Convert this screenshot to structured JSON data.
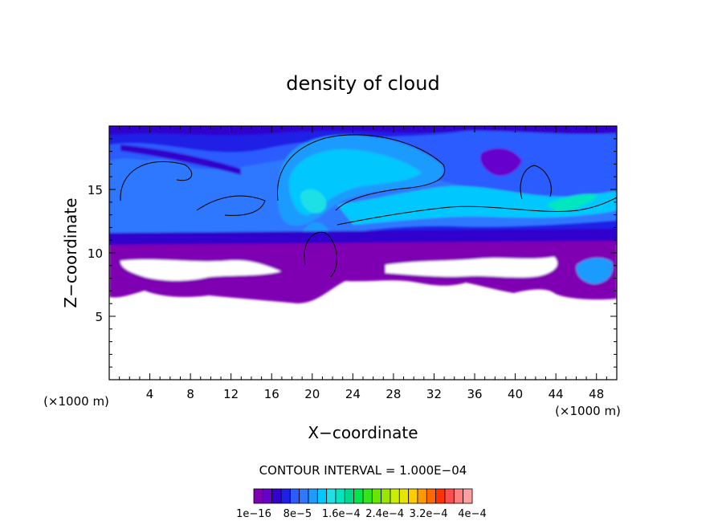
{
  "chart_data": {
    "type": "heatmap",
    "title": "density of cloud",
    "xlabel": "X−coordinate",
    "ylabel": "Z−coordinate",
    "x_unit_label": "(×1000 m)",
    "y_unit_label": "(×1000 m)",
    "xlim": [
      0,
      50
    ],
    "ylim": [
      0,
      20
    ],
    "x_ticks": [
      "4",
      "8",
      "12",
      "16",
      "20",
      "24",
      "28",
      "32",
      "36",
      "40",
      "44",
      "48"
    ],
    "y_ticks": [
      "5",
      "10",
      "15"
    ],
    "x_tick_values": [
      4,
      8,
      12,
      16,
      20,
      24,
      28,
      32,
      36,
      40,
      44,
      48
    ],
    "y_tick_values": [
      5,
      10,
      15
    ],
    "contour_interval_label": "CONTOUR INTERVAL = 1.000E−04",
    "colorbar": {
      "min": 1e-16,
      "max": 0.0004,
      "labels": [
        "1e−16",
        "8e−5",
        "1.6e−4",
        "2.4e−4",
        "3.2e−4",
        "4e−4"
      ],
      "colors": [
        "#7f00b2",
        "#6600cc",
        "#3300cc",
        "#1f1fe6",
        "#2a5cff",
        "#2f78ff",
        "#1f9bff",
        "#00c8ff",
        "#1ee0e6",
        "#00e6bf",
        "#00d98c",
        "#00e64d",
        "#33e61a",
        "#66e600",
        "#99e600",
        "#ccee00",
        "#e6e600",
        "#ffcc00",
        "#ff9900",
        "#ff6600",
        "#ff3300",
        "#ff4d4d",
        "#ff7f7f",
        "#ff9f9f"
      ]
    },
    "grid": false,
    "legend": "bottom-center"
  }
}
